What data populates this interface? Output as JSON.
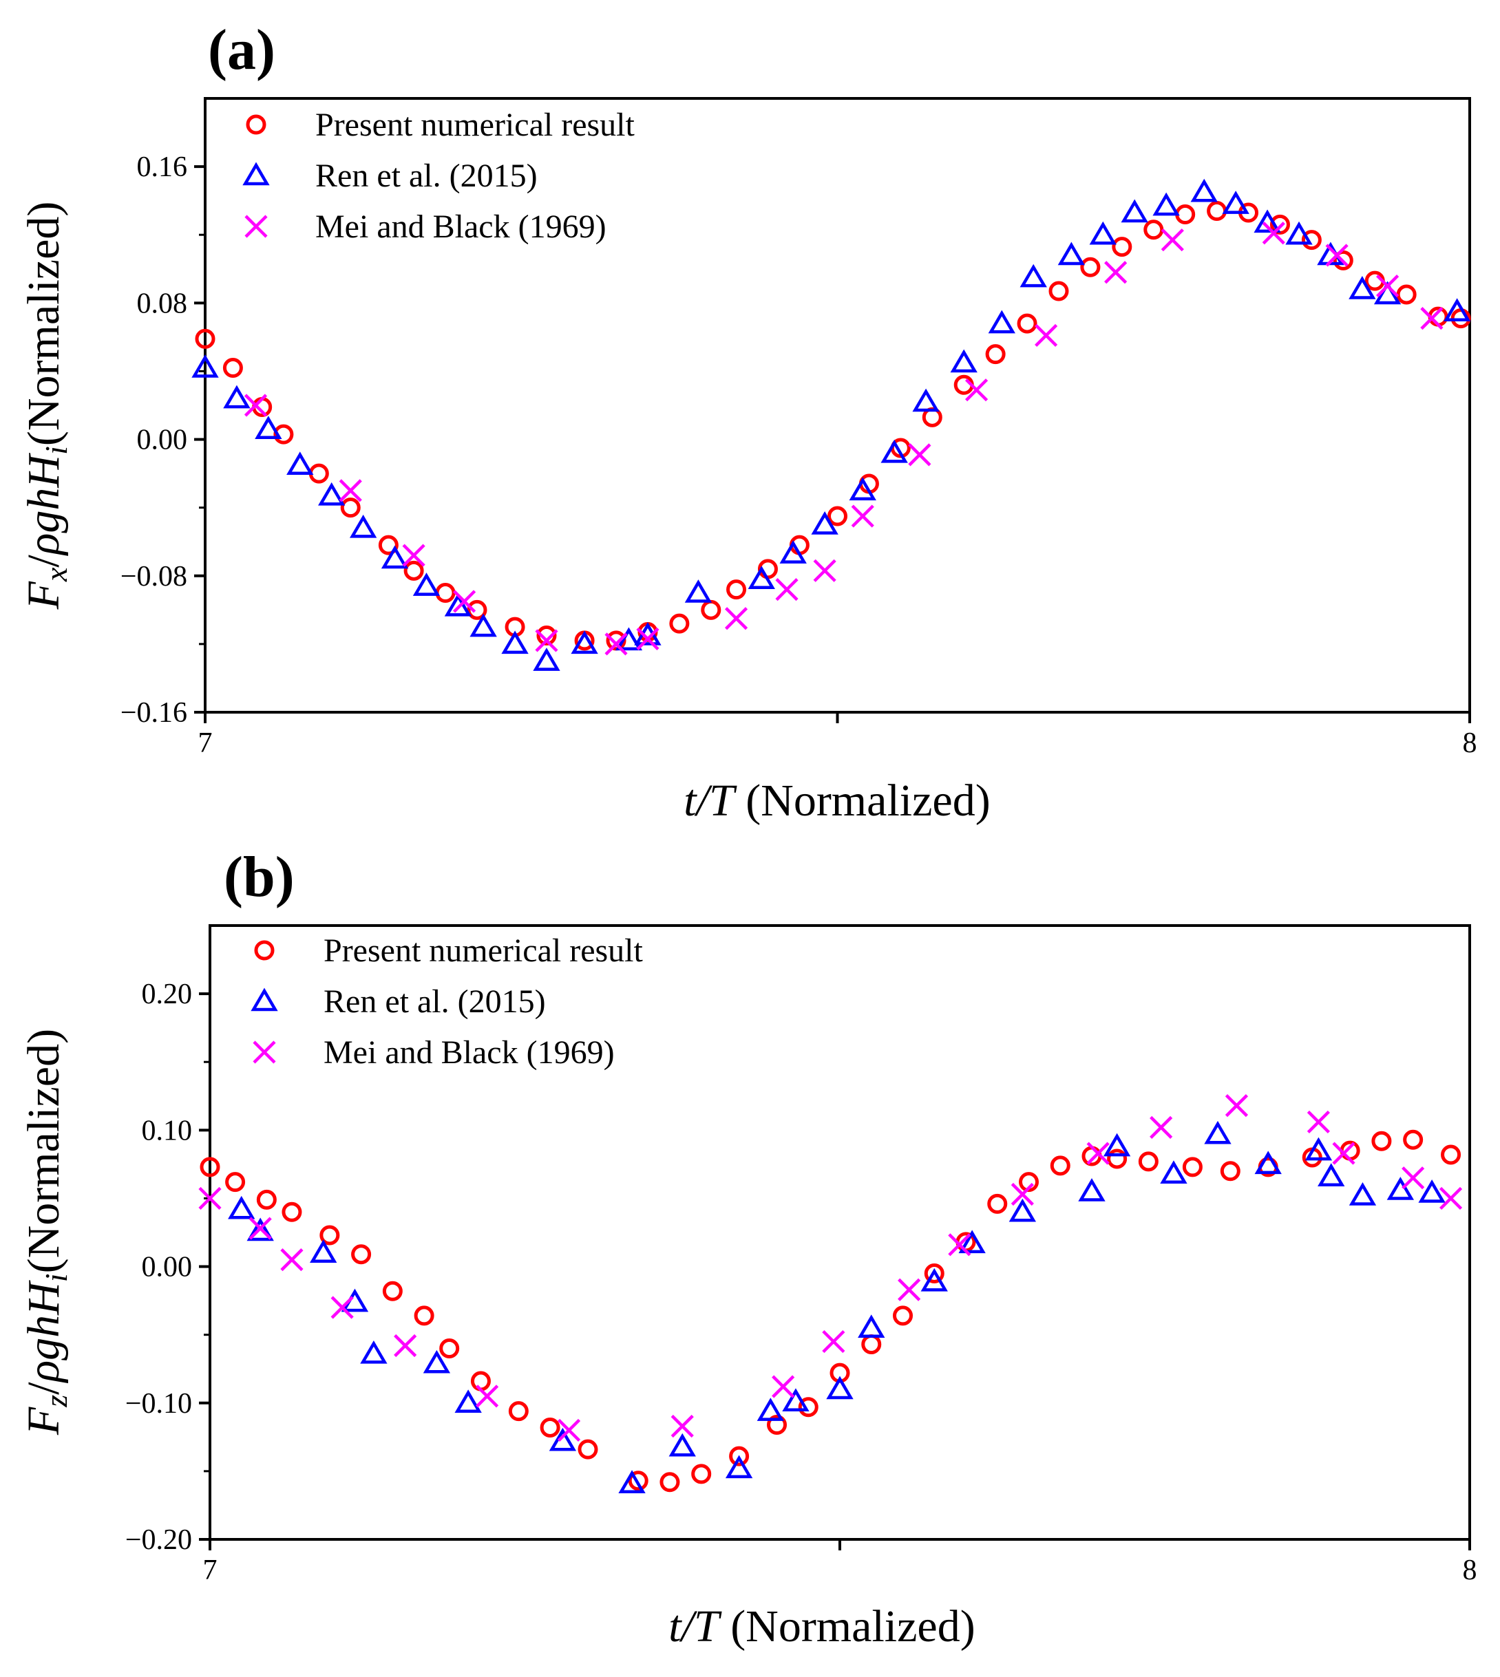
{
  "chart_data": [
    {
      "type": "scatter",
      "panel_label": "(a)",
      "xlabel_italic": "t/T",
      "xlabel_rest": " (Normalized)",
      "ylabel_math": "F_x/ρghH_i",
      "ylabel_rest": "(Normalized)",
      "xlim": [
        7,
        8
      ],
      "ylim": [
        -0.16,
        0.2
      ],
      "xticks": [
        7,
        7.5,
        8
      ],
      "xtick_labels": [
        "7",
        "",
        "8"
      ],
      "yticks": [
        -0.16,
        -0.08,
        0.0,
        0.08,
        0.16
      ],
      "ytick_labels": [
        "−0.16",
        "−0.08",
        "0.00",
        "0.08",
        "0.16"
      ],
      "legend_position": "top-left",
      "series": [
        {
          "name": "Present numerical result",
          "marker": "circle",
          "color": "#ff0000",
          "x": [
            7.0,
            7.022,
            7.045,
            7.062,
            7.09,
            7.115,
            7.145,
            7.165,
            7.19,
            7.215,
            7.245,
            7.27,
            7.3,
            7.325,
            7.35,
            7.375,
            7.4,
            7.42,
            7.445,
            7.47,
            7.5,
            7.525,
            7.55,
            7.575,
            7.6,
            7.625,
            7.65,
            7.675,
            7.7,
            7.725,
            7.75,
            7.775,
            7.8,
            7.825,
            7.85,
            7.875,
            7.9,
            7.925,
            7.95,
            7.975,
            7.993
          ],
          "y": [
            0.059,
            0.042,
            0.019,
            0.003,
            -0.02,
            -0.04,
            -0.062,
            -0.077,
            -0.09,
            -0.1,
            -0.11,
            -0.115,
            -0.118,
            -0.118,
            -0.113,
            -0.108,
            -0.1,
            -0.088,
            -0.076,
            -0.062,
            -0.045,
            -0.026,
            -0.005,
            0.013,
            0.032,
            0.05,
            0.068,
            0.087,
            0.101,
            0.113,
            0.123,
            0.132,
            0.134,
            0.133,
            0.126,
            0.117,
            0.105,
            0.093,
            0.085,
            0.072,
            0.071
          ]
        },
        {
          "name": "Ren et al. (2015)",
          "marker": "triangle",
          "color": "#0000ff",
          "x": [
            7.0,
            7.025,
            7.05,
            7.075,
            7.1,
            7.125,
            7.15,
            7.175,
            7.2,
            7.22,
            7.245,
            7.27,
            7.3,
            7.335,
            7.35,
            7.39,
            7.44,
            7.465,
            7.49,
            7.52,
            7.545,
            7.57,
            7.6,
            7.63,
            7.655,
            7.685,
            7.71,
            7.735,
            7.76,
            7.79,
            7.815,
            7.84,
            7.865,
            7.89,
            7.915,
            7.935,
            7.99
          ],
          "y": [
            0.042,
            0.024,
            0.006,
            -0.015,
            -0.033,
            -0.052,
            -0.07,
            -0.086,
            -0.098,
            -0.11,
            -0.12,
            -0.13,
            -0.12,
            -0.118,
            -0.115,
            -0.09,
            -0.082,
            -0.067,
            -0.05,
            -0.03,
            -0.008,
            0.022,
            0.045,
            0.068,
            0.095,
            0.108,
            0.12,
            0.133,
            0.137,
            0.145,
            0.138,
            0.127,
            0.12,
            0.108,
            0.088,
            0.085,
            0.075
          ]
        },
        {
          "name": "Mei and Black (1969)",
          "marker": "x",
          "color": "#ff00ff",
          "x": [
            7.04,
            7.115,
            7.165,
            7.205,
            7.27,
            7.325,
            7.35,
            7.42,
            7.46,
            7.49,
            7.52,
            7.565,
            7.61,
            7.665,
            7.72,
            7.765,
            7.845,
            7.895,
            7.935,
            7.97
          ],
          "y": [
            0.02,
            -0.03,
            -0.068,
            -0.095,
            -0.118,
            -0.12,
            -0.117,
            -0.105,
            -0.088,
            -0.077,
            -0.045,
            -0.009,
            0.029,
            0.061,
            0.098,
            0.117,
            0.121,
            0.108,
            0.09,
            0.071
          ]
        }
      ]
    },
    {
      "type": "scatter",
      "panel_label": "(b)",
      "xlabel_italic": "t/T",
      "xlabel_rest": " (Normalized)",
      "ylabel_math": "F_z/ρghH_i",
      "ylabel_rest": "(Normalized)",
      "xlim": [
        7,
        8
      ],
      "ylim": [
        -0.2,
        0.25
      ],
      "xticks": [
        7,
        7.5,
        8
      ],
      "xtick_labels": [
        "7",
        "",
        "8"
      ],
      "yticks": [
        -0.2,
        -0.1,
        0.0,
        0.1,
        0.2
      ],
      "ytick_labels": [
        "−0.20",
        "−0.10",
        "0.00",
        "0.10",
        "0.20"
      ],
      "legend_position": "top-left",
      "series": [
        {
          "name": "Present numerical result",
          "marker": "circle",
          "color": "#ff0000",
          "x": [
            7.0,
            7.02,
            7.045,
            7.065,
            7.095,
            7.12,
            7.145,
            7.17,
            7.19,
            7.215,
            7.245,
            7.27,
            7.3,
            7.34,
            7.365,
            7.39,
            7.42,
            7.45,
            7.475,
            7.5,
            7.525,
            7.55,
            7.575,
            7.6,
            7.625,
            7.65,
            7.675,
            7.7,
            7.72,
            7.745,
            7.78,
            7.81,
            7.84,
            7.875,
            7.905,
            7.93,
            7.955,
            7.985
          ],
          "y": [
            0.073,
            0.062,
            0.049,
            0.04,
            0.023,
            0.009,
            -0.018,
            -0.036,
            -0.06,
            -0.084,
            -0.106,
            -0.118,
            -0.134,
            -0.157,
            -0.158,
            -0.152,
            -0.139,
            -0.116,
            -0.103,
            -0.078,
            -0.057,
            -0.036,
            -0.005,
            0.018,
            0.046,
            0.062,
            0.074,
            0.081,
            0.079,
            0.077,
            0.073,
            0.07,
            0.073,
            0.08,
            0.085,
            0.092,
            0.093,
            0.082
          ]
        },
        {
          "name": "Ren et al. (2015)",
          "marker": "triangle",
          "color": "#0000ff",
          "x": [
            7.025,
            7.04,
            7.09,
            7.115,
            7.13,
            7.18,
            7.205,
            7.28,
            7.335,
            7.375,
            7.42,
            7.445,
            7.465,
            7.5,
            7.525,
            7.575,
            7.605,
            7.645,
            7.7,
            7.72,
            7.765,
            7.8,
            7.84,
            7.88,
            7.89,
            7.915,
            7.945,
            7.97
          ],
          "y": [
            0.042,
            0.026,
            0.01,
            -0.026,
            -0.064,
            -0.071,
            -0.1,
            -0.128,
            -0.159,
            -0.132,
            -0.148,
            -0.106,
            -0.099,
            -0.09,
            -0.045,
            -0.011,
            0.017,
            0.04,
            0.055,
            0.088,
            0.068,
            0.097,
            0.075,
            0.085,
            0.066,
            0.052,
            0.056,
            0.054
          ]
        },
        {
          "name": "Mei and Black (1969)",
          "marker": "x",
          "color": "#ff00ff",
          "x": [
            7.0,
            7.04,
            7.065,
            7.105,
            7.155,
            7.22,
            7.285,
            7.375,
            7.455,
            7.495,
            7.555,
            7.595,
            7.645,
            7.705,
            7.755,
            7.815,
            7.88,
            7.9,
            7.955,
            7.985
          ],
          "y": [
            0.05,
            0.028,
            0.005,
            -0.03,
            -0.058,
            -0.095,
            -0.12,
            -0.117,
            -0.088,
            -0.055,
            -0.017,
            0.016,
            0.053,
            0.083,
            0.102,
            0.118,
            0.106,
            0.083,
            0.065,
            0.05
          ]
        }
      ]
    }
  ]
}
